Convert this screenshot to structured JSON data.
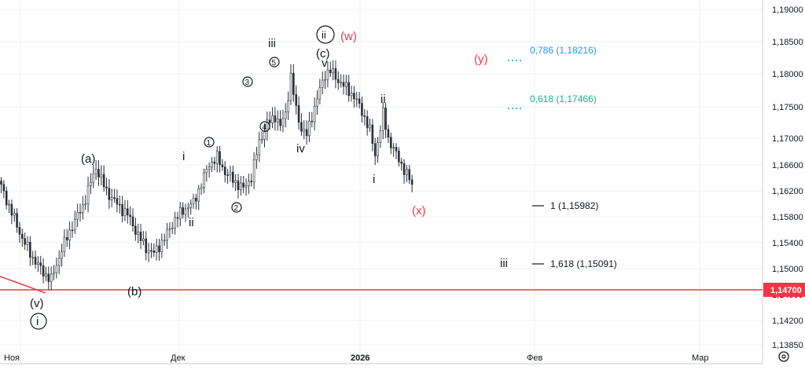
{
  "chart_data": {
    "type": "candlestick",
    "title": "",
    "xlabel": "",
    "ylabel": "",
    "x_ticks": [
      "Ноя",
      "Дек",
      "2026",
      "Фев",
      "Мар"
    ],
    "y_ticks": [
      "1,19000",
      "1,18500",
      "1,18000",
      "1,17500",
      "1,17000",
      "1,16600",
      "1,16200",
      "1,15800",
      "1,15400",
      "1,15000",
      "1,14600",
      "1,14200",
      "1,13850"
    ],
    "ylim": [
      1.136,
      1.1925
    ],
    "grid": true,
    "current_price_label": "1,14700",
    "support_level": 1.147,
    "price_path": [
      [
        0,
        1.1625
      ],
      [
        4,
        1.1585
      ],
      [
        8,
        1.1545
      ],
      [
        12,
        1.1515
      ],
      [
        16,
        1.1492
      ],
      [
        19,
        1.1481
      ],
      [
        23,
        1.1528
      ],
      [
        27,
        1.1565
      ],
      [
        31,
        1.1595
      ],
      [
        34,
        1.1632
      ],
      [
        36,
        1.1655
      ],
      [
        40,
        1.1618
      ],
      [
        44,
        1.1598
      ],
      [
        48,
        1.1582
      ],
      [
        52,
        1.155
      ],
      [
        55,
        1.153
      ],
      [
        58,
        1.1522
      ],
      [
        62,
        1.1545
      ],
      [
        66,
        1.1575
      ],
      [
        70,
        1.1592
      ],
      [
        73,
        1.16
      ],
      [
        76,
        1.163
      ],
      [
        79,
        1.166
      ],
      [
        82,
        1.167
      ],
      [
        85,
        1.1648
      ],
      [
        89,
        1.1632
      ],
      [
        92,
        1.1622
      ],
      [
        95,
        1.164
      ],
      [
        98,
        1.1695
      ],
      [
        101,
        1.1722
      ],
      [
        104,
        1.1735
      ],
      [
        106,
        1.1718
      ],
      [
        108,
        1.174
      ],
      [
        110,
        1.1795
      ],
      [
        112,
        1.1745
      ],
      [
        114,
        1.1715
      ],
      [
        116,
        1.1705
      ],
      [
        118,
        1.1735
      ],
      [
        121,
        1.1775
      ],
      [
        123,
        1.18
      ],
      [
        125,
        1.1805
      ],
      [
        128,
        1.179
      ],
      [
        131,
        1.1778
      ],
      [
        134,
        1.1765
      ],
      [
        137,
        1.1742
      ],
      [
        140,
        1.1712
      ],
      [
        142,
        1.1675
      ],
      [
        144,
        1.1715
      ],
      [
        145,
        1.1738
      ],
      [
        147,
        1.17
      ],
      [
        150,
        1.1675
      ],
      [
        153,
        1.1652
      ],
      [
        156,
        1.1628
      ]
    ],
    "fib_levels": [
      {
        "ratio": "0,786",
        "price": 1.18216,
        "label": "0,786 (1,18216)",
        "color": "#2196f3",
        "style": "dotted"
      },
      {
        "ratio": "0,618",
        "price": 1.17466,
        "label": "0,618 (1,17466)",
        "color": "#22ab94",
        "style": "dotted"
      },
      {
        "ratio": "1",
        "price": 1.15982,
        "label": "1 (1,15982)",
        "color": "#131722",
        "style": "solid"
      },
      {
        "ratio": "1,618",
        "price": 1.15091,
        "label": "1,618 (1,15091)",
        "color": "#131722",
        "style": "solid"
      }
    ],
    "wave_labels": [
      {
        "text": "(v)",
        "color": "#131722"
      },
      {
        "text": "i",
        "color": "#131722",
        "circled": true
      },
      {
        "text": "(a)",
        "color": "#131722"
      },
      {
        "text": "(b)",
        "color": "#131722"
      },
      {
        "text": "i",
        "color": "#131722"
      },
      {
        "text": "ii",
        "color": "#131722"
      },
      {
        "text": "1",
        "color": "#131722",
        "circled": true
      },
      {
        "text": "2",
        "color": "#131722",
        "circled": true
      },
      {
        "text": "3",
        "color": "#131722",
        "circled": true
      },
      {
        "text": "4",
        "color": "#131722",
        "circled": true
      },
      {
        "text": "5",
        "color": "#131722",
        "circled": true
      },
      {
        "text": "iii",
        "color": "#131722"
      },
      {
        "text": "iv",
        "color": "#131722"
      },
      {
        "text": "v",
        "color": "#131722"
      },
      {
        "text": "(c)",
        "color": "#131722"
      },
      {
        "text": "ii",
        "color": "#131722",
        "circled": true
      },
      {
        "text": "(w)",
        "color": "#f23645"
      },
      {
        "text": "(x)",
        "color": "#f23645"
      },
      {
        "text": "(y)",
        "color": "#f23645"
      },
      {
        "text": "ii",
        "color": "#131722"
      },
      {
        "text": "i",
        "color": "#131722"
      },
      {
        "text": "iii",
        "color": "#131722"
      }
    ],
    "colors": {
      "support": "#f23645",
      "candle": "#2a2e39",
      "axis_text": "#131722"
    }
  }
}
